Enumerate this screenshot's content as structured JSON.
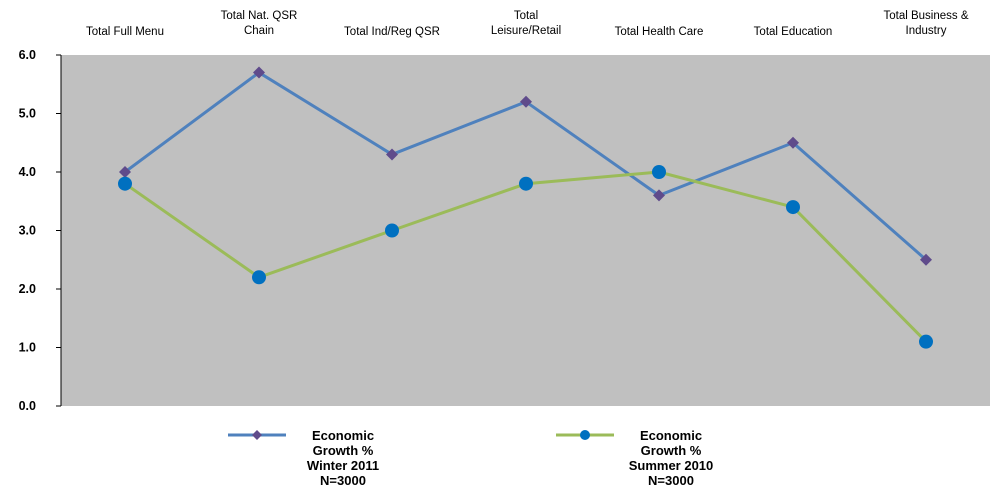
{
  "chart_data": {
    "type": "line",
    "categories": [
      [
        "Total Full Menu"
      ],
      [
        "Total Nat. QSR",
        "Chain"
      ],
      [
        "Total Ind/Reg QSR"
      ],
      [
        "Total",
        "Leisure/Retail"
      ],
      [
        "Total Health Care"
      ],
      [
        "Total Education"
      ],
      [
        "Total Business &",
        "Industry"
      ]
    ],
    "series": [
      {
        "name": [
          "Economic",
          "Growth %",
          "Winter 2011",
          "N=3000"
        ],
        "color": "#4f81bd",
        "marker": "diamond",
        "marker_color": "#5f4b8b",
        "values": [
          4.0,
          5.7,
          4.3,
          5.2,
          3.6,
          4.5,
          2.5
        ]
      },
      {
        "name": [
          "Economic",
          "Growth %",
          "Summer 2010",
          "N=3000"
        ],
        "color": "#9bbb59",
        "marker": "circle",
        "marker_color": "#0070c0",
        "values": [
          3.8,
          2.2,
          3.0,
          3.8,
          4.0,
          3.4,
          1.1
        ]
      }
    ],
    "yticks": [
      "0.0",
      "1.0",
      "2.0",
      "3.0",
      "4.0",
      "5.0",
      "6.0"
    ],
    "ylim": [
      0,
      6
    ],
    "plot_background": "#c0c0c0",
    "grid": false,
    "legend_position": "bottom"
  }
}
